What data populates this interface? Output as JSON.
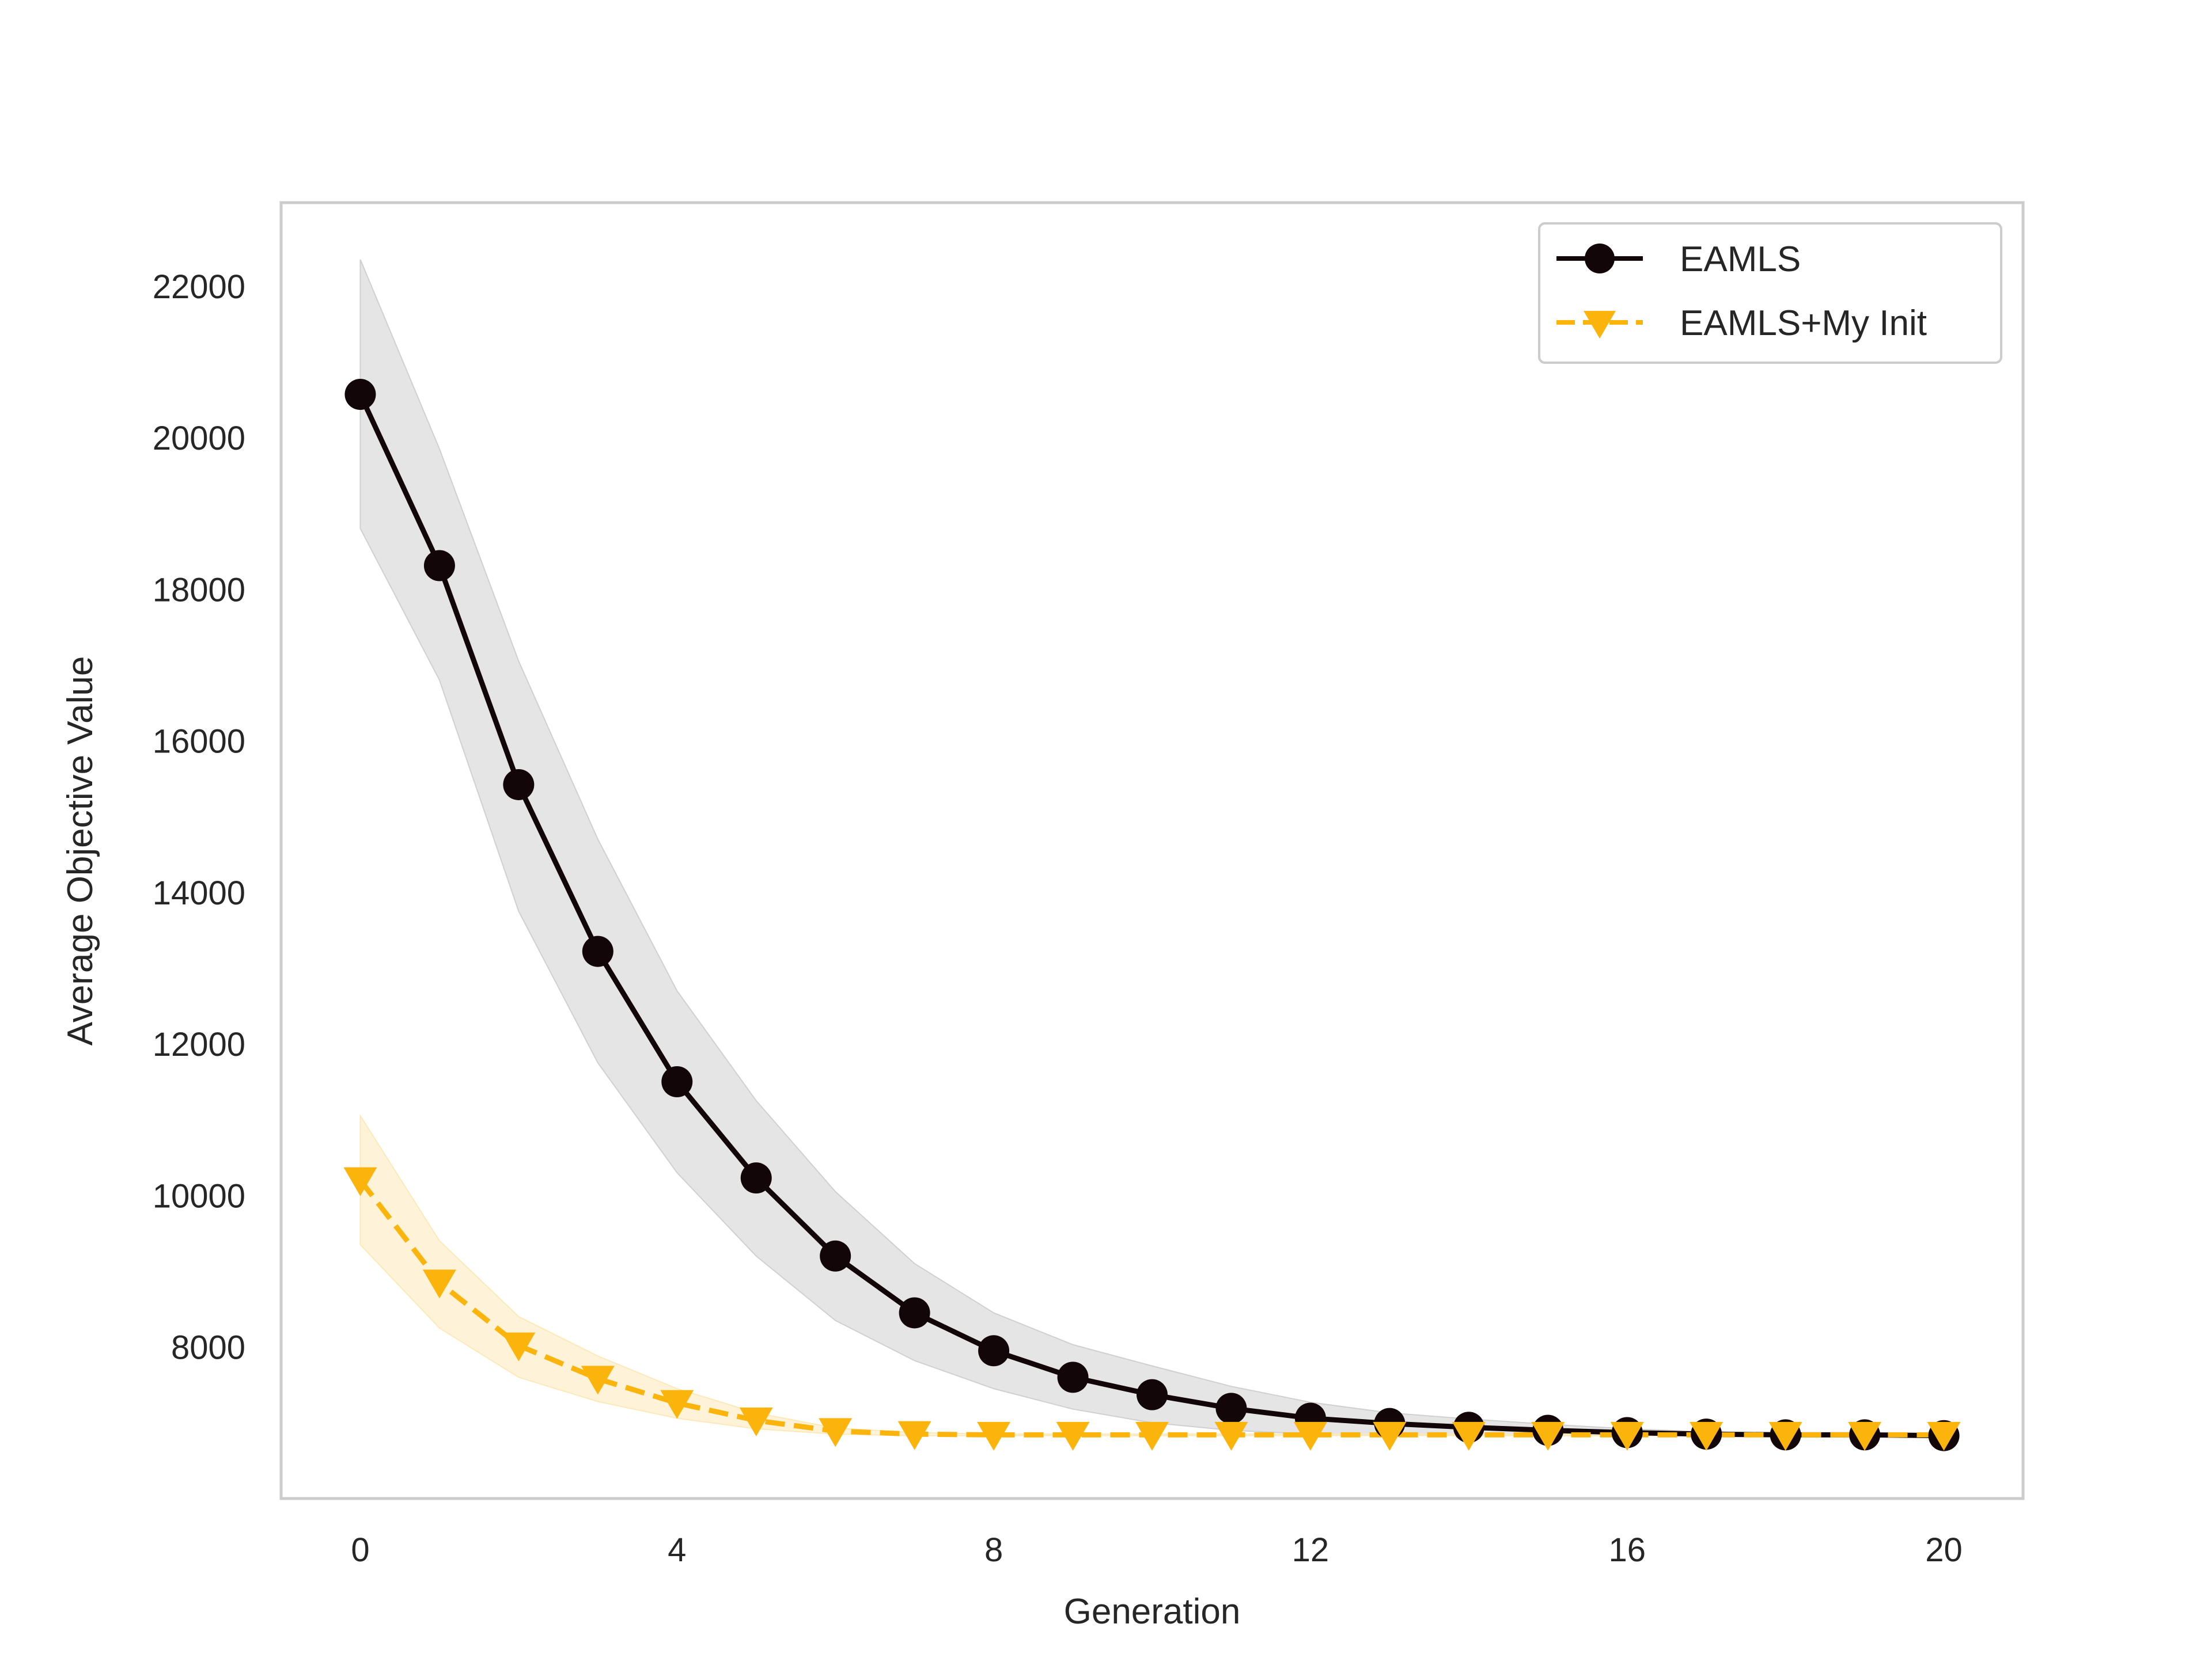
{
  "chart_data": {
    "type": "line",
    "title": "",
    "xlabel": "Generation",
    "ylabel": "Average Objective Value",
    "x": [
      0,
      1,
      2,
      3,
      4,
      5,
      6,
      7,
      8,
      9,
      10,
      11,
      12,
      13,
      14,
      15,
      16,
      17,
      18,
      19,
      20
    ],
    "xticks": [
      0,
      4,
      8,
      12,
      16,
      20
    ],
    "xtick_labels": [
      "0",
      "4",
      "8",
      "12",
      "16",
      "20"
    ],
    "yticks": [
      8000,
      10000,
      12000,
      14000,
      16000,
      18000,
      20000,
      22000
    ],
    "ytick_labels": [
      "8000",
      "10000",
      "12000",
      "14000",
      "16000",
      "18000",
      "20000",
      "22000"
    ],
    "xlim": [
      -1,
      21
    ],
    "ylim": [
      6000,
      23100
    ],
    "grid": false,
    "legend_position": "top-right",
    "series": [
      {
        "name": "EAMLS",
        "color": "#120608",
        "marker": "circle",
        "line_style": "solid",
        "values": [
          20570,
          18310,
          15420,
          13220,
          11500,
          10230,
          9200,
          8450,
          7950,
          7600,
          7370,
          7190,
          7060,
          6990,
          6940,
          6900,
          6870,
          6850,
          6840,
          6840,
          6830
        ],
        "band_lower": [
          18800,
          16800,
          13750,
          11750,
          10300,
          9200,
          8350,
          7820,
          7450,
          7180,
          7000,
          6900,
          6850,
          6840,
          6830,
          6830,
          6830,
          6830,
          6830,
          6830,
          6830
        ],
        "band_upper": [
          22350,
          19850,
          17050,
          14700,
          12700,
          11250,
          10050,
          9100,
          8450,
          8030,
          7750,
          7480,
          7270,
          7130,
          7050,
          6980,
          6920,
          6880,
          6860,
          6850,
          6840
        ],
        "band_color": "#d0d0d0"
      },
      {
        "name": "EAMLS+My Init",
        "color": "#fbb40c",
        "marker": "triangle-down",
        "line_style": "dashed",
        "values": [
          10200,
          8850,
          8020,
          7580,
          7260,
          7030,
          6890,
          6850,
          6840,
          6840,
          6840,
          6840,
          6840,
          6840,
          6840,
          6840,
          6840,
          6840,
          6840,
          6840,
          6840
        ],
        "band_lower": [
          9350,
          8250,
          7600,
          7280,
          7060,
          6920,
          6850,
          6830,
          6830,
          6830,
          6830,
          6830,
          6830,
          6830,
          6830,
          6830,
          6830,
          6830,
          6830,
          6830,
          6830
        ],
        "band_upper": [
          11050,
          9400,
          8400,
          7880,
          7450,
          7130,
          6930,
          6870,
          6850,
          6850,
          6850,
          6850,
          6850,
          6850,
          6850,
          6850,
          6850,
          6850,
          6850,
          6850,
          6850
        ],
        "band_color": "#fde9b8"
      }
    ]
  }
}
